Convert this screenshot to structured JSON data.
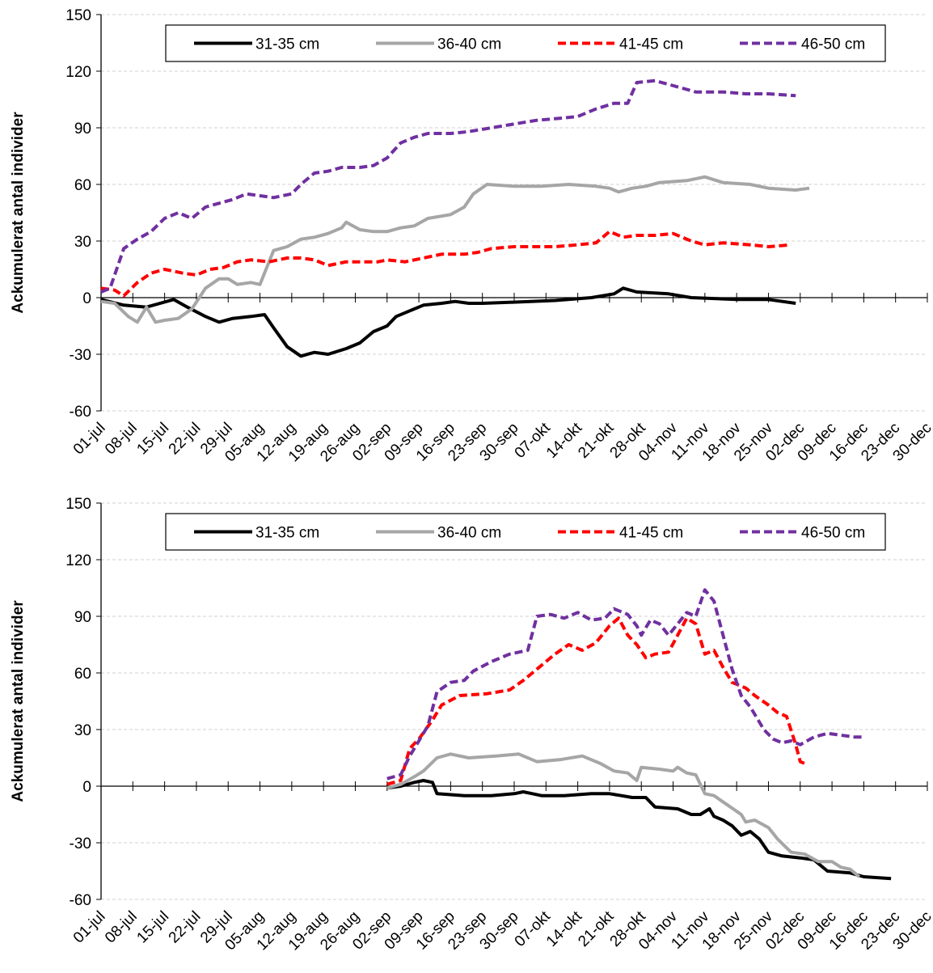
{
  "chart_data": [
    {
      "type": "line",
      "ylabel": "Ackumulerat antal individer",
      "xlim": [
        0,
        182
      ],
      "ylim": [
        -60,
        150
      ],
      "yticks": [
        -60,
        -30,
        0,
        30,
        60,
        90,
        120,
        150
      ],
      "grid": true,
      "legend": "top",
      "xticks": [
        {
          "value": 0,
          "label": "01-jul"
        },
        {
          "value": 7,
          "label": "08-jul"
        },
        {
          "value": 14,
          "label": "15-jul"
        },
        {
          "value": 21,
          "label": "22-jul"
        },
        {
          "value": 28,
          "label": "29-jul"
        },
        {
          "value": 35,
          "label": "05-aug"
        },
        {
          "value": 42,
          "label": "12-aug"
        },
        {
          "value": 49,
          "label": "19-aug"
        },
        {
          "value": 56,
          "label": "26-aug"
        },
        {
          "value": 63,
          "label": "02-sep"
        },
        {
          "value": 70,
          "label": "09-sep"
        },
        {
          "value": 77,
          "label": "16-sep"
        },
        {
          "value": 84,
          "label": "23-sep"
        },
        {
          "value": 91,
          "label": "30-sep"
        },
        {
          "value": 98,
          "label": "07-okt"
        },
        {
          "value": 105,
          "label": "14-okt"
        },
        {
          "value": 112,
          "label": "21-okt"
        },
        {
          "value": 119,
          "label": "28-okt"
        },
        {
          "value": 126,
          "label": "04-nov"
        },
        {
          "value": 133,
          "label": "11-nov"
        },
        {
          "value": 140,
          "label": "18-nov"
        },
        {
          "value": 147,
          "label": "25-nov"
        },
        {
          "value": 154,
          "label": "02-dec"
        },
        {
          "value": 161,
          "label": "09-dec"
        },
        {
          "value": 168,
          "label": "16-dec"
        },
        {
          "value": 175,
          "label": "23-dec"
        },
        {
          "value": 182,
          "label": "30-dec"
        }
      ],
      "series": [
        {
          "name": "31-35 cm",
          "color": "#000000",
          "dash": false,
          "x": [
            0,
            5,
            10,
            13,
            16,
            19,
            23,
            26,
            29,
            33,
            36,
            38,
            41,
            44,
            47,
            50,
            54,
            57,
            60,
            63,
            65,
            68,
            71,
            75,
            78,
            81,
            84,
            90,
            100,
            108,
            113,
            115,
            118,
            125,
            130,
            140,
            147,
            153
          ],
          "values": [
            -1,
            -4,
            -5,
            -3,
            -1,
            -5,
            -10,
            -13,
            -11,
            -10,
            -9,
            -16,
            -26,
            -31,
            -29,
            -30,
            -27,
            -24,
            -18,
            -15,
            -10,
            -7,
            -4,
            -3,
            -2,
            -3,
            -3,
            -2.5,
            -1.5,
            0,
            2,
            5,
            3,
            2,
            0,
            -1,
            -1,
            -3
          ]
        },
        {
          "name": "36-40 cm",
          "color": "#a6a6a6",
          "dash": false,
          "x": [
            0,
            3,
            6,
            8,
            10,
            12,
            14,
            17,
            20,
            23,
            26,
            28,
            30,
            33,
            35,
            38,
            41,
            44,
            47,
            50,
            53,
            54,
            57,
            60,
            63,
            66,
            69,
            72,
            77,
            80,
            82,
            85,
            91,
            97,
            103,
            109,
            112,
            114,
            117,
            120,
            123,
            129,
            133,
            137,
            143,
            147,
            153,
            156
          ],
          "values": [
            -2,
            -3,
            -10,
            -13,
            -5,
            -13,
            -12,
            -11,
            -6,
            5,
            10,
            10,
            7,
            8,
            7,
            25,
            27,
            31,
            32,
            34,
            37,
            40,
            36,
            35,
            35,
            37,
            38,
            42,
            44,
            48,
            55,
            60,
            59,
            59,
            60,
            59,
            58,
            56,
            58,
            59,
            61,
            62,
            64,
            61,
            60,
            58,
            57,
            58
          ]
        },
        {
          "name": "41-45 cm",
          "color": "#ff0000",
          "dash": true,
          "x": [
            0,
            3,
            5,
            8,
            11,
            14,
            18,
            21,
            24,
            27,
            30,
            33,
            37,
            41,
            44,
            47,
            50,
            54,
            58,
            61,
            63,
            67,
            71,
            75,
            80,
            83,
            86,
            91,
            95,
            100,
            105,
            109,
            112,
            115,
            118,
            122,
            126,
            130,
            133,
            137,
            143,
            147,
            152
          ],
          "values": [
            5,
            4,
            1,
            8,
            13,
            15,
            13,
            12,
            15,
            16,
            19,
            20,
            19,
            21,
            21,
            20,
            17,
            19,
            19,
            19,
            20,
            19,
            21,
            23,
            23,
            24,
            26,
            27,
            27,
            27,
            28,
            29,
            35,
            32,
            33,
            33,
            34,
            30,
            28,
            29,
            28,
            27,
            28
          ]
        },
        {
          "name": "46-50 cm",
          "color": "#7030a0",
          "dash": true,
          "x": [
            0,
            2,
            5,
            8,
            11,
            14,
            17,
            20,
            23,
            26,
            29,
            32,
            35,
            38,
            42,
            44,
            47,
            50,
            53,
            57,
            60,
            63,
            66,
            69,
            72,
            77,
            81,
            86,
            91,
            96,
            101,
            105,
            109,
            113,
            116,
            118,
            122,
            125,
            128,
            131,
            137,
            142,
            147,
            153
          ],
          "values": [
            3,
            5,
            26,
            31,
            35,
            42,
            45,
            42,
            48,
            50,
            52,
            55,
            54,
            53,
            55,
            60,
            66,
            67,
            69,
            69,
            70,
            74,
            82,
            85,
            87,
            87,
            88,
            90,
            92,
            94,
            95,
            96,
            100,
            103,
            103,
            114,
            115,
            113,
            111,
            109,
            109,
            108,
            108,
            107
          ]
        }
      ]
    },
    {
      "type": "line",
      "ylabel": "Ackumulerat antal individer",
      "xlim": [
        0,
        182
      ],
      "ylim": [
        -60,
        150
      ],
      "yticks": [
        -60,
        -30,
        0,
        30,
        60,
        90,
        120,
        150
      ],
      "grid": true,
      "legend": "top",
      "xticks": [
        {
          "value": 0,
          "label": "01-jul"
        },
        {
          "value": 7,
          "label": "08-jul"
        },
        {
          "value": 14,
          "label": "15-jul"
        },
        {
          "value": 21,
          "label": "22-jul"
        },
        {
          "value": 28,
          "label": "29-jul"
        },
        {
          "value": 35,
          "label": "05-aug"
        },
        {
          "value": 42,
          "label": "12-aug"
        },
        {
          "value": 49,
          "label": "19-aug"
        },
        {
          "value": 56,
          "label": "26-aug"
        },
        {
          "value": 63,
          "label": "02-sep"
        },
        {
          "value": 70,
          "label": "09-sep"
        },
        {
          "value": 77,
          "label": "16-sep"
        },
        {
          "value": 84,
          "label": "23-sep"
        },
        {
          "value": 91,
          "label": "30-sep"
        },
        {
          "value": 98,
          "label": "07-okt"
        },
        {
          "value": 105,
          "label": "14-okt"
        },
        {
          "value": 112,
          "label": "21-okt"
        },
        {
          "value": 119,
          "label": "28-okt"
        },
        {
          "value": 126,
          "label": "04-nov"
        },
        {
          "value": 133,
          "label": "11-nov"
        },
        {
          "value": 140,
          "label": "18-nov"
        },
        {
          "value": 147,
          "label": "25-nov"
        },
        {
          "value": 154,
          "label": "02-dec"
        },
        {
          "value": 161,
          "label": "09-dec"
        },
        {
          "value": 168,
          "label": "16-dec"
        },
        {
          "value": 175,
          "label": "23-dec"
        },
        {
          "value": 182,
          "label": "30-dec"
        }
      ],
      "series": [
        {
          "name": "31-35 cm",
          "color": "#000000",
          "dash": false,
          "x": [
            63,
            66,
            69,
            71,
            73,
            74,
            80,
            86,
            91,
            93,
            95,
            97,
            102,
            108,
            112,
            117,
            120,
            122,
            127,
            130,
            132,
            134,
            135,
            137,
            139,
            141,
            143,
            145,
            147,
            150,
            154,
            157,
            160,
            165,
            168,
            174
          ],
          "values": [
            -1,
            0,
            2,
            3,
            2,
            -4,
            -5,
            -5,
            -4,
            -3,
            -4,
            -5,
            -5,
            -4,
            -4,
            -6,
            -6,
            -11,
            -12,
            -15,
            -15,
            -12,
            -16,
            -18,
            -21,
            -26,
            -24,
            -28,
            -35,
            -37,
            -38,
            -39,
            -45,
            -46,
            -48,
            -49
          ]
        },
        {
          "name": "36-40 cm",
          "color": "#a6a6a6",
          "dash": false,
          "x": [
            63,
            66,
            69,
            71,
            74,
            77,
            81,
            87,
            92,
            96,
            101,
            106,
            110,
            113,
            116,
            118,
            119,
            123,
            126,
            127,
            129,
            131,
            133,
            135,
            138,
            141,
            142,
            144,
            147,
            149,
            152,
            155,
            158,
            161,
            163,
            165,
            167
          ],
          "values": [
            -1,
            1,
            5,
            8,
            15,
            17,
            15,
            16,
            17,
            13,
            14,
            16,
            12,
            8,
            7,
            3,
            10,
            9,
            8,
            10,
            7,
            6,
            -4,
            -5,
            -10,
            -15,
            -19,
            -18,
            -22,
            -28,
            -35,
            -36,
            -40,
            -40,
            -43,
            -44,
            -48
          ]
        },
        {
          "name": "41-45 cm",
          "color": "#ff0000",
          "dash": true,
          "x": [
            63,
            66,
            68,
            70,
            73,
            75,
            79,
            85,
            90,
            93,
            96,
            100,
            103,
            106,
            109,
            112,
            114,
            116,
            118,
            120,
            122,
            125,
            127,
            129,
            131,
            133,
            135,
            137,
            139,
            142,
            144,
            147,
            149,
            151,
            153,
            154,
            155
          ],
          "values": [
            1,
            3,
            20,
            25,
            35,
            43,
            48,
            49,
            51,
            56,
            62,
            70,
            75,
            72,
            76,
            85,
            89,
            80,
            75,
            68,
            70,
            71,
            80,
            89,
            86,
            70,
            72,
            63,
            55,
            52,
            48,
            43,
            39,
            37,
            22,
            13,
            12
          ]
        },
        {
          "name": "46-50 cm",
          "color": "#7030a0",
          "dash": true,
          "x": [
            63,
            66,
            68,
            70,
            72,
            74,
            77,
            80,
            82,
            86,
            90,
            94,
            96,
            99,
            102,
            105,
            108,
            111,
            113,
            116,
            118,
            119,
            121,
            123,
            125,
            127,
            129,
            131,
            133,
            135,
            137,
            139,
            141,
            143,
            146,
            148,
            150,
            152,
            154,
            157,
            160,
            163,
            166,
            168
          ],
          "values": [
            4,
            6,
            16,
            24,
            32,
            50,
            55,
            56,
            61,
            66,
            70,
            72,
            90,
            91,
            89,
            92,
            88,
            89,
            94,
            91,
            85,
            80,
            88,
            86,
            80,
            86,
            92,
            90,
            104,
            98,
            80,
            62,
            48,
            42,
            30,
            25,
            23,
            24,
            22,
            26,
            28,
            27,
            26,
            26
          ]
        }
      ]
    }
  ]
}
